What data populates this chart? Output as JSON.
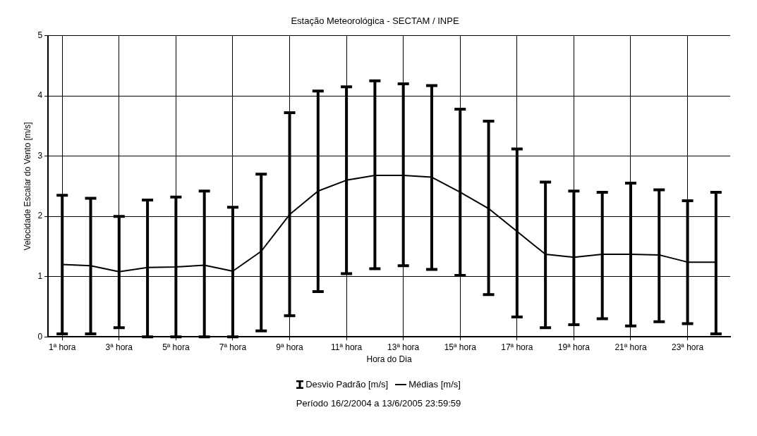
{
  "chart_data": {
    "type": "line",
    "title": "Estação Meteorológica - SECTAM / INPE",
    "xlabel": "Hora do Dia",
    "ylabel": "Velocidade Escalar do Vento [m/s]",
    "categories": [
      "1ª hora",
      null,
      "3ª hora",
      null,
      "5ª hora",
      null,
      "7ª hora",
      null,
      "9ª hora",
      null,
      "11ª hora",
      null,
      "13ª hora",
      null,
      "15ª hora",
      null,
      "17ª hora",
      null,
      "19ª hora",
      null,
      "21ª hora",
      null,
      "23ª hora",
      null
    ],
    "series": [
      {
        "name": "Médias [m/s]",
        "color": "#000000",
        "values": [
          1.2,
          1.18,
          1.08,
          1.15,
          1.16,
          1.19,
          1.09,
          1.42,
          2.03,
          2.42,
          2.6,
          2.68,
          2.68,
          2.65,
          2.4,
          2.13,
          1.75,
          1.37,
          1.32,
          1.37,
          1.37,
          1.36,
          1.24,
          1.24
        ],
        "errors": [
          [
            0.05,
            2.35
          ],
          [
            0.05,
            2.3
          ],
          [
            0.15,
            2.0
          ],
          [
            0,
            2.27
          ],
          [
            0,
            2.32
          ],
          [
            0,
            2.42
          ],
          [
            0,
            2.15
          ],
          [
            0.1,
            2.7
          ],
          [
            0.35,
            3.72
          ],
          [
            0.75,
            4.08
          ],
          [
            1.05,
            4.15
          ],
          [
            1.13,
            4.25
          ],
          [
            1.18,
            4.2
          ],
          [
            1.12,
            4.17
          ],
          [
            1.02,
            3.78
          ],
          [
            0.7,
            3.58
          ],
          [
            0.33,
            3.12
          ],
          [
            0.15,
            2.57
          ],
          [
            0.2,
            2.42
          ],
          [
            0.3,
            2.4
          ],
          [
            0.18,
            2.55
          ],
          [
            0.25,
            2.44
          ],
          [
            0.22,
            2.26
          ],
          [
            0.05,
            2.4
          ]
        ]
      }
    ],
    "ylim": [
      0,
      5
    ],
    "yticks": [
      0,
      1,
      2,
      3,
      4,
      5
    ],
    "grid": true,
    "legend": "bottom",
    "marker": "none",
    "line_style": "solid",
    "annotations": [
      "Desvio Padrão [m/s]",
      "Período  16/2/2004 a 13/6/2005 23:59:59"
    ]
  }
}
